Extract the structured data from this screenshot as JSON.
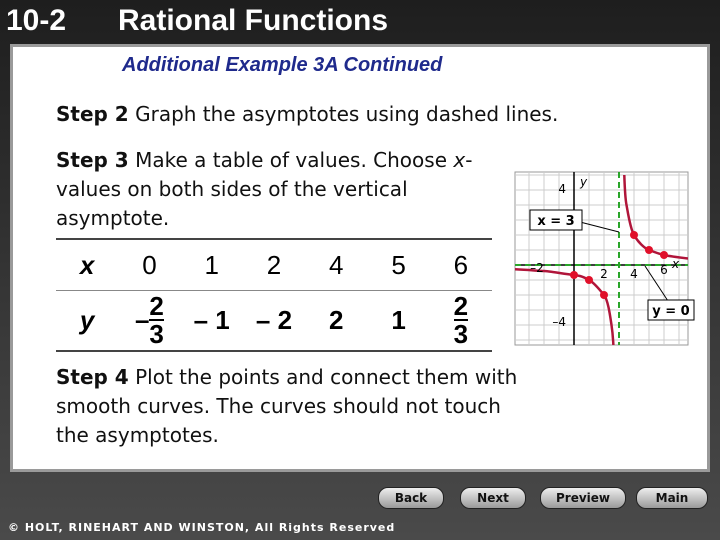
{
  "header": {
    "lesson": "10-2",
    "title": "Rational Functions"
  },
  "subtitle": "Additional Example 3A Continued",
  "steps": [
    {
      "label": "Step 2",
      "text": "Graph the asymptotes using dashed lines."
    },
    {
      "label": "Step 3",
      "parts": [
        "Make a table of values. Choose ",
        "x",
        "-values on both sides of the vertical asymptote."
      ]
    },
    {
      "label": "Step 4",
      "text": "Plot the points and connect them with smooth curves. The curves should not touch the asymptotes."
    }
  ],
  "table": {
    "rows": [
      [
        "x",
        "0",
        "1",
        "2",
        "4",
        "5",
        "6"
      ],
      [
        "y",
        {
          "sign": "–",
          "numerator": "2",
          "denominator": "3"
        },
        "– 1",
        "– 2",
        "2",
        "1",
        {
          "numerator": "2",
          "denominator": "3"
        }
      ]
    ]
  },
  "graph": {
    "x_axis_label": "x",
    "y_axis_label": "y",
    "tick_labels": {
      "y_top": "4",
      "x_neg": "–2",
      "x_2": "2",
      "x_4": "4",
      "x_6": "6",
      "y_bottom": "–4"
    },
    "callouts": {
      "vertical": "x = 3",
      "horizontal": "y = 0"
    }
  },
  "nav": [
    "Back",
    "Next",
    "Preview",
    "Main"
  ],
  "footer": "© HOLT, RINEHART AND WINSTON, All Rights Reserved"
}
